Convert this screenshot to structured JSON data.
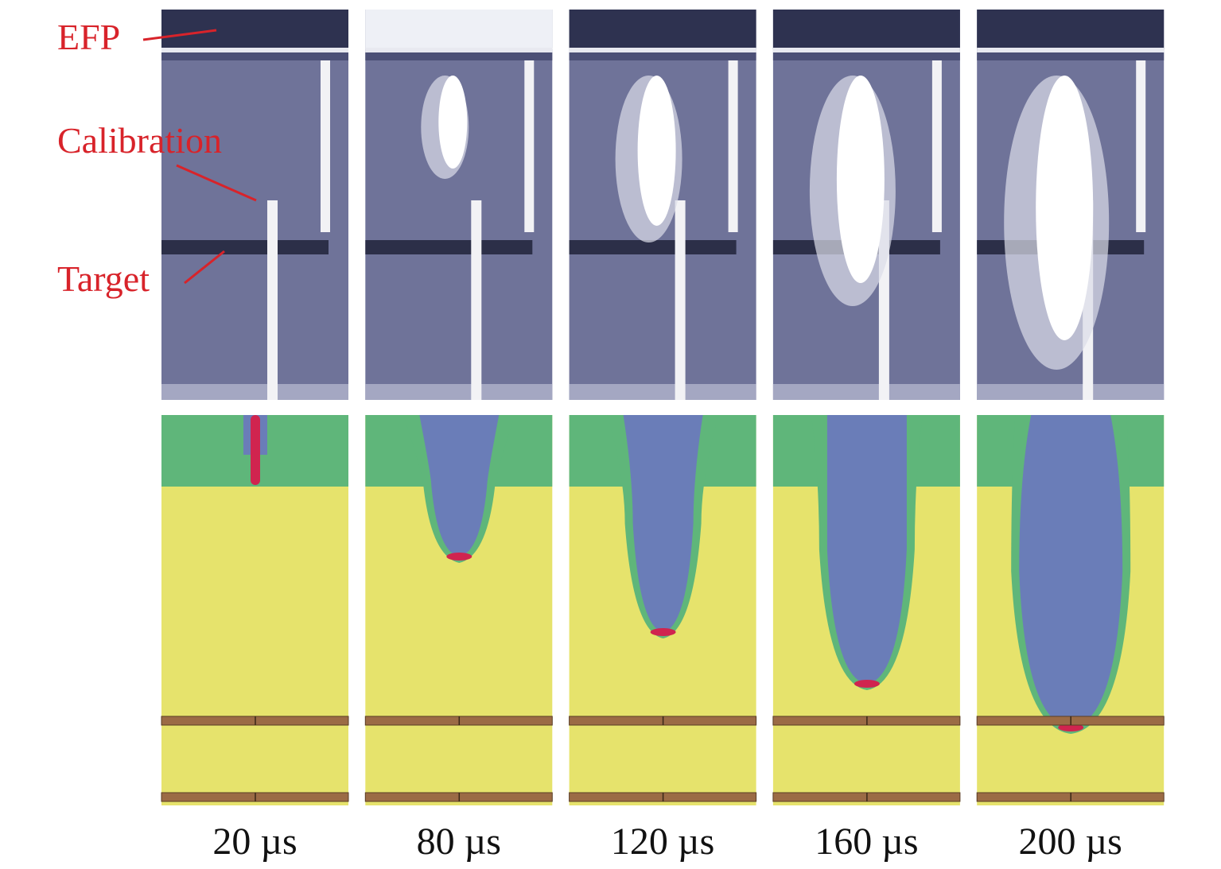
{
  "annotations": [
    "EFP",
    "Calibration",
    "Target"
  ],
  "frames": [
    {
      "time": "20 µs"
    },
    {
      "time": "80 µs"
    },
    {
      "time": "120 µs"
    },
    {
      "time": "160 µs"
    },
    {
      "time": "200 µs"
    }
  ]
}
